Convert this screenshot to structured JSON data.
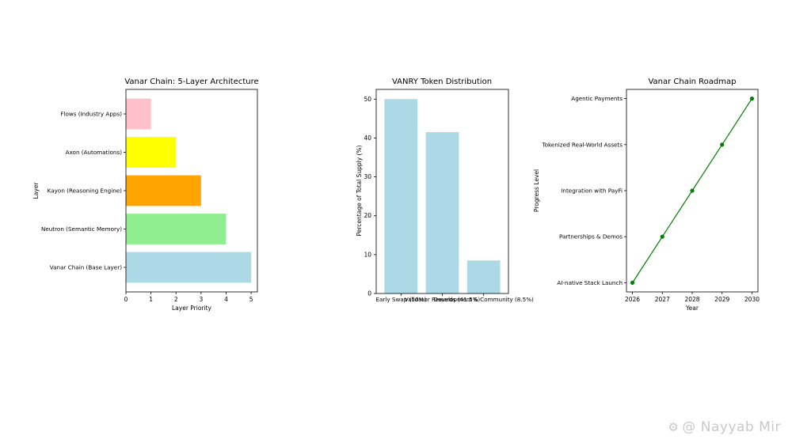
{
  "chart_data": [
    {
      "type": "bar",
      "orientation": "horizontal",
      "title": "Vanar Chain: 5-Layer Architecture",
      "xlabel": "Layer Priority",
      "ylabel": "Layer",
      "categories": [
        "Vanar Chain (Base Layer)",
        "Neutron (Semantic Memory)",
        "Kayon (Reasoning Engine)",
        "Axon (Automations)",
        "Flows (Industry Apps)"
      ],
      "values": [
        5,
        4,
        3,
        2,
        1
      ],
      "colors": [
        "#add8e6",
        "#90ee90",
        "#ffa500",
        "#ffff00",
        "#ffc0cb"
      ],
      "xlim": [
        0,
        5.25
      ],
      "xticks": [
        0,
        1,
        2,
        3,
        4,
        5
      ]
    },
    {
      "type": "bar",
      "title": "VANRY Token Distribution",
      "xlabel": "",
      "ylabel": "Percentage of Total Supply (%)",
      "categories": [
        "Early Swap (50%)",
        "Validator Rewards (41.5%)",
        "Development & Community (8.5%)"
      ],
      "values": [
        50,
        41.5,
        8.5
      ],
      "colors": [
        "#add8e6",
        "#add8e6",
        "#add8e6"
      ],
      "ylim": [
        0,
        52.5
      ],
      "yticks": [
        0,
        10,
        20,
        30,
        40,
        50
      ]
    },
    {
      "type": "line",
      "title": "Vanar Chain Roadmap",
      "xlabel": "Year",
      "ylabel": "Progress Level",
      "x": [
        2026,
        2027,
        2028,
        2029,
        2030
      ],
      "categories": [
        "AI-native Stack Launch",
        "Partnerships & Demos",
        "Integration with PayFi",
        "Tokenized Real-World Assets",
        "Agentic Payments"
      ],
      "color": "#008000",
      "xticks": [
        2026,
        2027,
        2028,
        2029,
        2030
      ]
    }
  ],
  "watermark": {
    "icon": "user-icon",
    "text": "@ Nayyab Mir"
  }
}
